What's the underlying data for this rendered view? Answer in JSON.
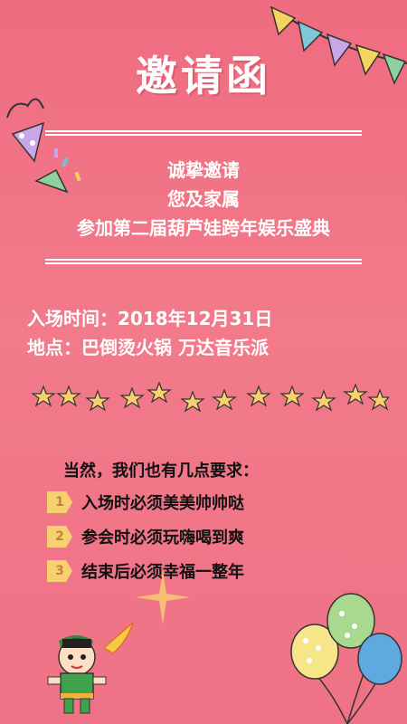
{
  "header": {
    "title": "邀请函"
  },
  "invitation": {
    "line1": "诚挚邀请",
    "line2": "您及家属",
    "line3": "参加第二届葫芦娃跨年娱乐盛典"
  },
  "details": {
    "time_label": "入场时间：",
    "time_value": "2018年12月31日",
    "place_label": "地点：",
    "place_value": "巴倒烫火锅 万达音乐派"
  },
  "requirements": {
    "intro": "当然，我们也有几点要求：",
    "items": [
      {
        "num": "1",
        "text": "入场时必须美美帅帅哒"
      },
      {
        "num": "2",
        "text": "参会时必须玩嗨喝到爽"
      },
      {
        "num": "3",
        "text": "结束后必须幸福一整年"
      }
    ]
  },
  "colors": {
    "background": "#f06c80",
    "text_light": "#ffffff",
    "text_dark": "#111111",
    "badge": "#f7d070"
  },
  "icons": [
    "party-hat-icon",
    "bunting-flags-icon",
    "star-icon",
    "balloons-icon",
    "cartoon-character-icon",
    "confetti-icon"
  ]
}
